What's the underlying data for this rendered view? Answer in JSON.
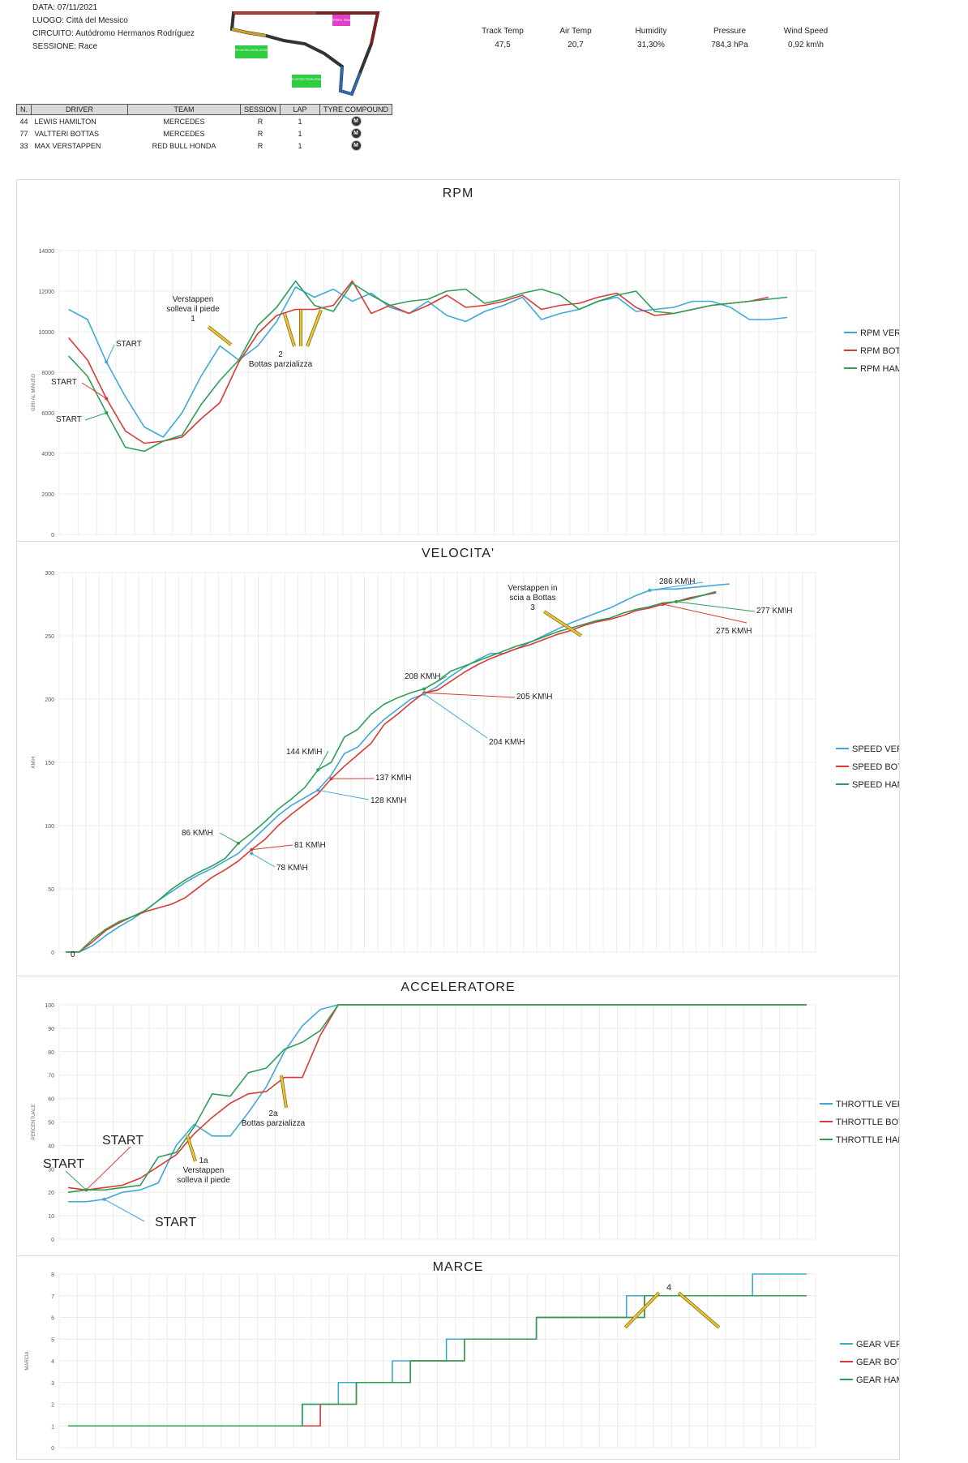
{
  "header": {
    "data_line": "DATA: 07/11/2021",
    "luogo_line": "LUOGO: Città del Messico",
    "circuito_line": "CIRCUITO: Autódromo Hermanos Rodríguez",
    "sessione_line": "SESSIONE: Race",
    "track_labels": [
      "DRS DETECTION ZONE 2",
      "DRS DETECTION ZONE 1",
      "SPEED TRAP"
    ]
  },
  "weather": {
    "labels": [
      "Track Temp",
      "Air Temp",
      "Humidity",
      "Pressure",
      "Wind Speed"
    ],
    "values": [
      "47,5",
      "20,7",
      "31,30%",
      "784,3 hPa",
      "0,92 km\\h"
    ]
  },
  "drivers_table": {
    "headers": [
      "N.",
      "DRIVER",
      "TEAM",
      "SESSION",
      "LAP",
      "TYRE COMPOUND"
    ],
    "rows": [
      {
        "num": "44",
        "driver": "LEWIS HAMILTON",
        "team": "MERCEDES",
        "session": "R",
        "lap": "1",
        "tyre": "M"
      },
      {
        "num": "77",
        "driver": "VALTTERI BOTTAS",
        "team": "MERCEDES",
        "session": "R",
        "lap": "1",
        "tyre": "M"
      },
      {
        "num": "33",
        "driver": "MAX VERSTAPPEN",
        "team": "RED BULL HONDA",
        "session": "R",
        "lap": "1",
        "tyre": "M"
      }
    ]
  },
  "colors": {
    "ver": "#3fa9d6",
    "bot": "#d93a35",
    "ham": "#2e9e57",
    "arrow": "#e8c53a"
  },
  "chart_data": [
    {
      "id": "rpm",
      "type": "line",
      "title": "RPM",
      "ylabel": "GIRI AL MINUTO",
      "ylim": [
        0,
        14000
      ],
      "yticks": [
        0,
        2000,
        4000,
        6000,
        8000,
        10000,
        12000,
        14000
      ],
      "n": 40,
      "series": [
        {
          "name": "RPM VER",
          "color": "#3fa9d6",
          "values": [
            11100,
            10600,
            8500,
            6800,
            5300,
            4800,
            6000,
            7800,
            9300,
            8600,
            9300,
            10500,
            12200,
            11700,
            12100,
            11500,
            11900,
            11200,
            10900,
            11500,
            10800,
            10500,
            11000,
            11300,
            11700,
            10600,
            10900,
            11100,
            11500,
            11700,
            11000,
            11100,
            11200,
            11500,
            11500,
            11200,
            10600,
            10600,
            10700,
            null
          ]
        },
        {
          "name": "RPM BOT",
          "color": "#d93a35",
          "values": [
            9700,
            8600,
            6700,
            5100,
            4500,
            4600,
            4800,
            5700,
            6500,
            8500,
            9900,
            10800,
            11100,
            11100,
            11300,
            12500,
            10900,
            11300,
            10900,
            11300,
            11800,
            11200,
            11300,
            11500,
            11800,
            11100,
            11300,
            11400,
            11700,
            11900,
            11200,
            10800,
            10900,
            11100,
            11300,
            11400,
            11500,
            11700,
            null,
            null
          ]
        },
        {
          "name": "RPM HAM",
          "color": "#2e9e57",
          "values": [
            8800,
            7800,
            6000,
            4300,
            4100,
            4600,
            4900,
            6400,
            7600,
            8600,
            10300,
            11200,
            12500,
            11300,
            11000,
            12400,
            11800,
            11300,
            11500,
            11600,
            12000,
            12100,
            11400,
            11600,
            11900,
            12100,
            11800,
            11100,
            11500,
            11800,
            12000,
            11000,
            10900,
            11100,
            11300,
            11400,
            11500,
            11600,
            11700,
            null
          ]
        }
      ],
      "annotations": [
        "Verstappen\nsolleva il piede\n1",
        "2\nBottas parzializza",
        "START",
        "START",
        "START"
      ]
    },
    {
      "id": "speed",
      "type": "line",
      "title": "VELOCITA'",
      "ylabel": "KM\\H",
      "ylim": [
        0,
        300
      ],
      "yticks": [
        0,
        50,
        100,
        150,
        200,
        250,
        300
      ],
      "n": 57,
      "series": [
        {
          "name": "SPEED VER",
          "color": "#3fa9d6",
          "values": [
            0,
            0,
            5,
            13,
            20,
            26,
            33,
            41,
            48,
            55,
            61,
            66,
            72,
            78,
            88,
            98,
            108,
            116,
            122,
            128,
            140,
            157,
            162,
            174,
            184,
            192,
            200,
            204,
            210,
            218,
            225,
            231,
            236,
            236,
            240,
            245,
            250,
            255,
            260,
            264,
            268,
            272,
            277,
            282,
            286,
            287,
            287,
            288,
            289,
            290,
            291,
            null,
            null,
            null,
            null,
            null,
            null
          ]
        },
        {
          "name": "SPEED BOT",
          "color": "#d93a35",
          "values": [
            0,
            0,
            8,
            17,
            23,
            28,
            32,
            35,
            38,
            43,
            51,
            59,
            65,
            72,
            81,
            89,
            100,
            109,
            117,
            125,
            137,
            147,
            156,
            165,
            180,
            188,
            197,
            205,
            207,
            214,
            221,
            227,
            232,
            236,
            240,
            243,
            247,
            251,
            254,
            258,
            261,
            263,
            266,
            270,
            272,
            275,
            277,
            280,
            282,
            284,
            null,
            null,
            null,
            null,
            null,
            null,
            null
          ]
        },
        {
          "name": "SPEED HAM",
          "color": "#2e9e57",
          "values": [
            0,
            0,
            10,
            18,
            24,
            28,
            33,
            41,
            50,
            57,
            63,
            68,
            74,
            86,
            94,
            103,
            113,
            121,
            130,
            144,
            150,
            170,
            176,
            188,
            196,
            201,
            205,
            208,
            214,
            222,
            226,
            230,
            234,
            238,
            242,
            245,
            249,
            253,
            256,
            259,
            262,
            264,
            268,
            271,
            273,
            276,
            277,
            279,
            282,
            285,
            null,
            null,
            null,
            null,
            null,
            null,
            null
          ]
        }
      ],
      "annotations": [
        "Verstappen in\nscia a Bottas\n3",
        "286 KM\\H",
        "277 KM\\H",
        "275 KM\\H",
        "208 KM\\H",
        "205 KM\\H",
        "204 KM\\H",
        "144 KM\\H",
        "137 KM\\H",
        "128 KM\\H",
        "86 KM\\H",
        "81 KM\\H",
        "78 KM\\H",
        "0"
      ]
    },
    {
      "id": "throttle",
      "type": "line",
      "title": "ACCELERATORE",
      "ylabel": "PERCENTUALE",
      "ylim": [
        0,
        100
      ],
      "yticks": [
        0,
        10,
        20,
        30,
        40,
        50,
        60,
        70,
        80,
        90,
        100
      ],
      "n": 42,
      "series": [
        {
          "name": "THROTTLE VER",
          "color": "#3fa9d6",
          "values": [
            16,
            16,
            17,
            20,
            21,
            24,
            40,
            49,
            44,
            44,
            54,
            65,
            80,
            91,
            98,
            100,
            100,
            100,
            100,
            100,
            100,
            100,
            100,
            100,
            100,
            100,
            100,
            100,
            100,
            100,
            100,
            100,
            100,
            100,
            100,
            100,
            100,
            100,
            100,
            100,
            100,
            100
          ]
        },
        {
          "name": "THROTTLE BOT",
          "color": "#d93a35",
          "values": [
            22,
            21,
            22,
            23,
            26,
            31,
            36,
            45,
            52,
            58,
            62,
            63,
            69,
            69,
            87,
            100,
            100,
            100,
            100,
            100,
            100,
            100,
            100,
            100,
            100,
            100,
            100,
            100,
            100,
            100,
            100,
            100,
            100,
            100,
            100,
            100,
            100,
            100,
            100,
            100,
            100,
            100
          ]
        },
        {
          "name": "THROTTLE HAM",
          "color": "#2e9e57",
          "values": [
            20,
            21,
            21,
            22,
            23,
            35,
            37,
            48,
            62,
            61,
            71,
            73,
            81,
            84,
            89,
            100,
            100,
            100,
            100,
            100,
            100,
            100,
            100,
            100,
            100,
            100,
            100,
            100,
            100,
            100,
            100,
            100,
            100,
            100,
            100,
            100,
            100,
            100,
            100,
            100,
            100,
            100
          ]
        }
      ],
      "annotations": [
        "2a\nBottas parzializza",
        "1a\nVerstappen\nsolleva il piede",
        "START",
        "START",
        "START"
      ]
    },
    {
      "id": "gear",
      "type": "line",
      "title": "MARCE",
      "ylabel": "MARCIA",
      "ylim": [
        0,
        8
      ],
      "yticks": [
        0,
        1,
        2,
        3,
        4,
        5,
        6,
        7,
        8
      ],
      "n": 42,
      "series": [
        {
          "name": "GEAR VER",
          "color": "#3fa9d6",
          "values": [
            1,
            1,
            1,
            1,
            1,
            1,
            1,
            1,
            1,
            1,
            1,
            1,
            1,
            2,
            2,
            3,
            3,
            3,
            4,
            4,
            4,
            5,
            5,
            5,
            5,
            5,
            6,
            6,
            6,
            6,
            6,
            7,
            7,
            7,
            7,
            7,
            7,
            7,
            8,
            8,
            8,
            8
          ]
        },
        {
          "name": "GEAR BOT",
          "color": "#d93a35",
          "values": [
            1,
            1,
            1,
            1,
            1,
            1,
            1,
            1,
            1,
            1,
            1,
            1,
            1,
            1,
            2,
            2,
            3,
            3,
            3,
            4,
            4,
            4,
            5,
            5,
            5,
            5,
            6,
            6,
            6,
            6,
            6,
            6,
            7,
            7,
            7,
            7,
            7,
            7,
            7,
            7,
            7,
            7
          ]
        },
        {
          "name": "GEAR HAM",
          "color": "#2e9e57",
          "values": [
            1,
            1,
            1,
            1,
            1,
            1,
            1,
            1,
            1,
            1,
            1,
            1,
            1,
            2,
            2,
            2,
            3,
            3,
            3,
            4,
            4,
            4,
            5,
            5,
            5,
            5,
            6,
            6,
            6,
            6,
            6,
            6,
            7,
            7,
            7,
            7,
            7,
            7,
            7,
            7,
            7,
            7
          ]
        }
      ],
      "annotations": [
        "4"
      ]
    }
  ]
}
